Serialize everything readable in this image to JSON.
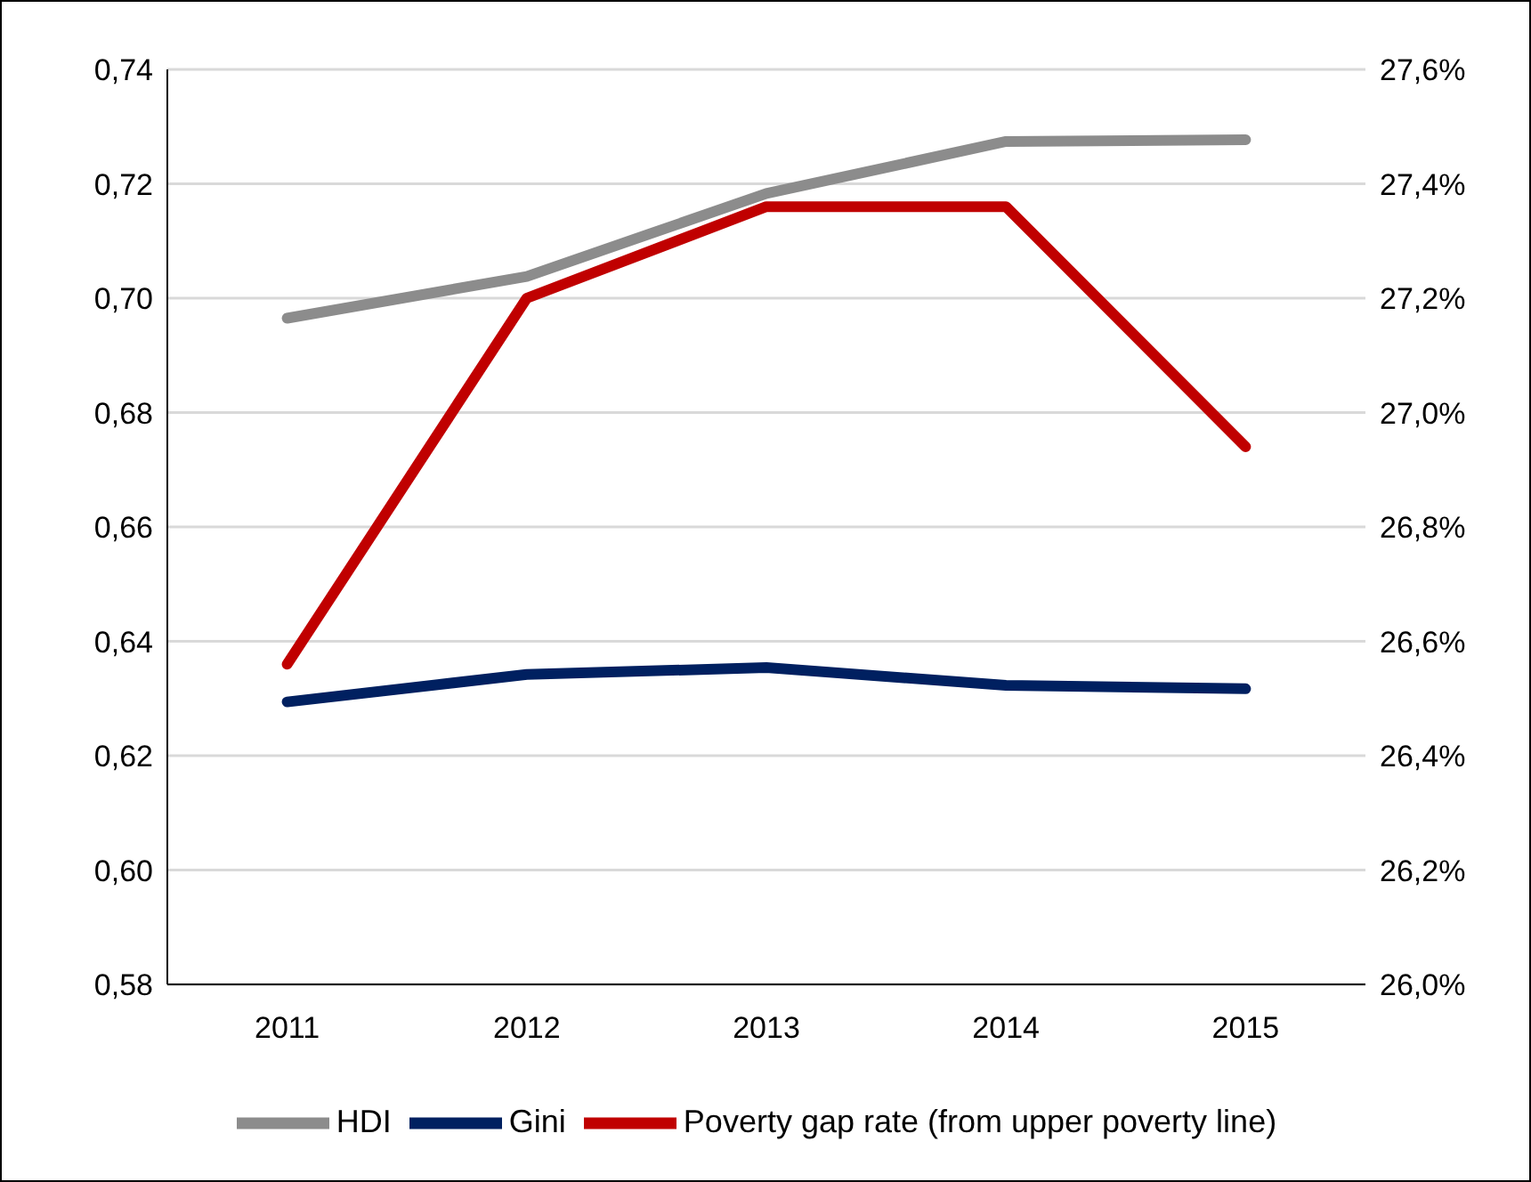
{
  "chart_data": {
    "type": "line",
    "categories": [
      "2011",
      "2012",
      "2013",
      "2014",
      "2015"
    ],
    "series": [
      {
        "name": "HDI",
        "color": "#8c8c8c",
        "values": [
          0.6965,
          0.7038,
          0.7183,
          0.7274,
          0.7277
        ]
      },
      {
        "name": "Gini",
        "color": "#002060",
        "values": [
          0.6294,
          0.6342,
          0.6354,
          0.6323,
          0.6317
        ]
      },
      {
        "name": "Poverty gap rate (from upper poverty line)",
        "color": "#c00000",
        "axis": "y2",
        "values": [
          26.56,
          27.2,
          27.36,
          27.36,
          26.94
        ]
      }
    ],
    "ylim": [
      0.58,
      0.74
    ],
    "yticks": [
      {
        "value": 0.58,
        "label": "0,58"
      },
      {
        "value": 0.6,
        "label": "0,60"
      },
      {
        "value": 0.62,
        "label": "0,62"
      },
      {
        "value": 0.64,
        "label": "0,64"
      },
      {
        "value": 0.66,
        "label": "0,66"
      },
      {
        "value": 0.68,
        "label": "0,68"
      },
      {
        "value": 0.7,
        "label": "0,70"
      },
      {
        "value": 0.72,
        "label": "0,72"
      },
      {
        "value": 0.74,
        "label": "0,74"
      }
    ],
    "y2lim": [
      26.0,
      27.6
    ],
    "y2ticks": [
      {
        "value": 26.0,
        "label": "26,0%"
      },
      {
        "value": 26.2,
        "label": "26,2%"
      },
      {
        "value": 26.4,
        "label": "26,4%"
      },
      {
        "value": 26.6,
        "label": "26,6%"
      },
      {
        "value": 26.8,
        "label": "26,8%"
      },
      {
        "value": 27.0,
        "label": "27,0%"
      },
      {
        "value": 27.2,
        "label": "27,2%"
      },
      {
        "value": 27.4,
        "label": "27,4%"
      },
      {
        "value": 27.6,
        "label": "27,6%"
      }
    ],
    "grid": "y",
    "legend": "bottom",
    "marker": "none",
    "line_style": "solid"
  }
}
